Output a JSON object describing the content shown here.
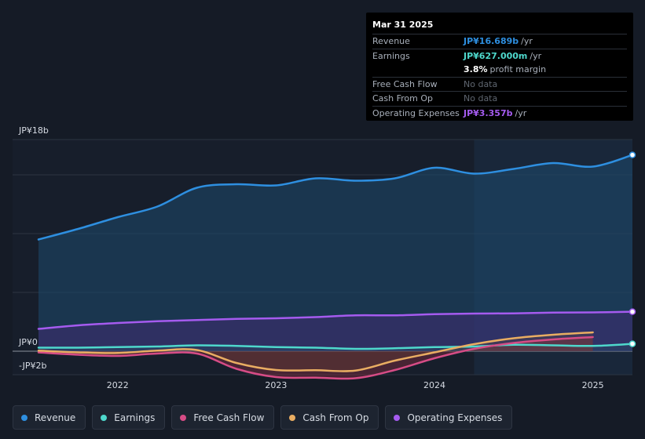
{
  "tooltip": {
    "date": "Mar 31 2025",
    "rows": [
      {
        "label": "Revenue",
        "value": "JP¥16.689b",
        "unit": "/yr",
        "color": "#2e8fe0"
      },
      {
        "label": "Earnings",
        "value": "JP¥627.000m",
        "unit": "/yr",
        "color": "#4ed8cc"
      },
      {
        "label": "",
        "value": "3.8%",
        "unit": "profit margin",
        "color": "#ffffff"
      },
      {
        "label": "Free Cash Flow",
        "value": "No data",
        "unit": "",
        "color": ""
      },
      {
        "label": "Cash From Op",
        "value": "No data",
        "unit": "",
        "color": ""
      },
      {
        "label": "Operating Expenses",
        "value": "JP¥3.357b",
        "unit": "/yr",
        "color": "#a55bef"
      }
    ]
  },
  "legend": [
    {
      "label": "Revenue",
      "color": "#2e8fe0"
    },
    {
      "label": "Earnings",
      "color": "#4ed8cc"
    },
    {
      "label": "Free Cash Flow",
      "color": "#d64c86"
    },
    {
      "label": "Cash From Op",
      "color": "#e9ad62"
    },
    {
      "label": "Operating Expenses",
      "color": "#a55bef"
    }
  ],
  "chart_data": {
    "type": "line",
    "y_tick_labels": [
      "JP¥18b",
      "JP¥0",
      "-JP¥2b"
    ],
    "ylim": [
      -2,
      18
    ],
    "y_unit": "JP¥ billions",
    "x_ticks": [
      2022,
      2023,
      2024,
      2025
    ],
    "xlim": [
      2021.5,
      2025.25
    ],
    "highlight_from": 2024.25,
    "series": [
      {
        "name": "Revenue",
        "color": "#2e8fe0",
        "x": [
          2021.5,
          2021.75,
          2022,
          2022.25,
          2022.5,
          2022.75,
          2023,
          2023.25,
          2023.5,
          2023.75,
          2024,
          2024.25,
          2024.5,
          2024.75,
          2025,
          2025.25
        ],
        "y": [
          9.5,
          10.4,
          11.4,
          12.3,
          13.9,
          14.2,
          14.1,
          14.7,
          14.5,
          14.7,
          15.6,
          15.1,
          15.5,
          16.0,
          15.7,
          16.689
        ]
      },
      {
        "name": "Earnings",
        "color": "#4ed8cc",
        "x": [
          2021.5,
          2021.75,
          2022,
          2022.25,
          2022.5,
          2022.75,
          2023,
          2023.25,
          2023.5,
          2023.75,
          2024,
          2024.25,
          2024.5,
          2024.75,
          2025,
          2025.25
        ],
        "y": [
          0.3,
          0.3,
          0.35,
          0.4,
          0.5,
          0.45,
          0.35,
          0.3,
          0.2,
          0.25,
          0.35,
          0.4,
          0.55,
          0.5,
          0.45,
          0.627
        ]
      },
      {
        "name": "Free Cash Flow",
        "color": "#d64c86",
        "x": [
          2021.5,
          2021.75,
          2022,
          2022.25,
          2022.5,
          2022.75,
          2023,
          2023.25,
          2023.5,
          2023.75,
          2024,
          2024.25,
          2024.5,
          2024.75,
          2025
        ],
        "y": [
          -0.1,
          -0.3,
          -0.4,
          -0.2,
          -0.2,
          -1.5,
          -2.2,
          -2.25,
          -2.3,
          -1.6,
          -0.6,
          0.2,
          0.7,
          1.0,
          1.2
        ]
      },
      {
        "name": "Cash From Op",
        "color": "#e9ad62",
        "x": [
          2021.5,
          2021.75,
          2022,
          2022.25,
          2022.5,
          2022.75,
          2023,
          2023.25,
          2023.5,
          2023.75,
          2024,
          2024.25,
          2024.5,
          2024.75,
          2025
        ],
        "y": [
          0.05,
          -0.1,
          -0.15,
          0.05,
          0.1,
          -1.0,
          -1.6,
          -1.62,
          -1.65,
          -0.8,
          -0.1,
          0.6,
          1.1,
          1.4,
          1.6
        ]
      },
      {
        "name": "Operating Expenses",
        "color": "#a55bef",
        "x": [
          2021.5,
          2021.75,
          2022,
          2022.25,
          2022.5,
          2022.75,
          2023,
          2023.25,
          2023.5,
          2023.75,
          2024,
          2024.25,
          2024.5,
          2024.75,
          2025,
          2025.25
        ],
        "y": [
          1.9,
          2.2,
          2.4,
          2.55,
          2.65,
          2.75,
          2.8,
          2.9,
          3.05,
          3.05,
          3.15,
          3.2,
          3.22,
          3.28,
          3.3,
          3.357
        ]
      }
    ]
  }
}
